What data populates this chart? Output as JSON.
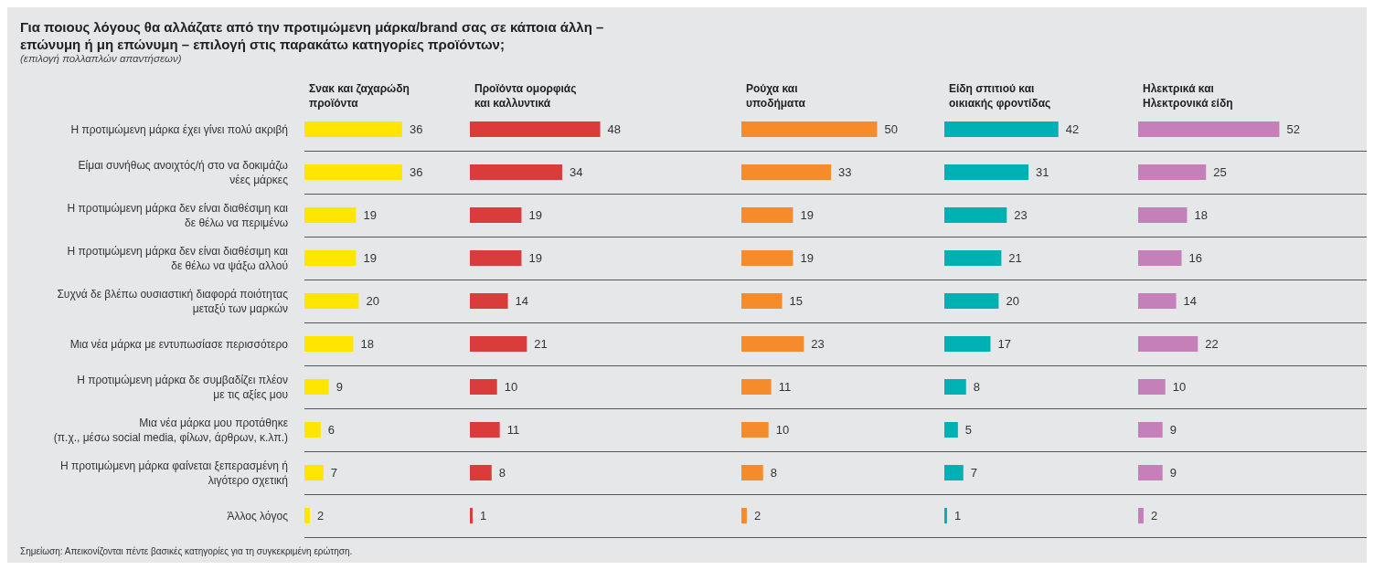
{
  "chart_data": [
    {
      "type": "other",
      "title": "Για ποιους λόγους θα αλλάζατε από την προτιμώμενη μάρκα/brand σας σε κάποια άλλη –\nεπώνυμη ή μη επώνυμη – επιλογή στις παρακάτω κατηγορίες προϊόντων;",
      "subtitle": "(επιλογή πολλαπλών απαντήσεων)",
      "annotations": [
        "Σημείωση: Απεικονίζονται πέντε βασικές κατηγορίες για τη συγκεκριμένη ερώτηση."
      ]
    },
    {
      "type": "bar",
      "orientation": "horizontal",
      "title": "Σνακ και ζαχαρώδη\nπροϊόντα",
      "categories": [
        "Η προτιμώμενη μάρκα έχει γίνει πολύ ακριβή",
        "Είμαι συνήθως ανοιχτός/ή στο να δοκιμάζω\nνέες μάρκες",
        "Η προτιμώμενη μάρκα δεν είναι διαθέσιμη και\nδε θέλω να περιμένω",
        "Η προτιμώμενη μάρκα δεν είναι διαθέσιμη και\nδε θέλω να ψάξω αλλού",
        "Συχνά δε βλέπω ουσιαστική διαφορά ποιότητας\nμεταξύ των μαρκών",
        "Μια νέα μάρκα με εντυπωσίασε περισσότερο",
        "Η προτιμώμενη μάρκα δε συμβαδίζει πλέον\nμε τις αξίες μου",
        "Μια νέα μάρκα μου προτάθηκε\n(π.χ., μέσω social media, φίλων, άρθρων, κ.λπ.)",
        "Η προτιμώμενη μάρκα φαίνεται ξεπερασμένη ή\nλιγότερο σχετική",
        "Άλλος λόγος"
      ],
      "values": [
        36,
        36,
        19,
        19,
        20,
        18,
        9,
        6,
        7,
        2
      ],
      "color": "#ffe600",
      "data_labels": true,
      "tick_labels": "y",
      "grid": "y"
    },
    {
      "type": "bar",
      "orientation": "horizontal",
      "title": "Προϊόντα ομορφιάς\nκαι καλλυντικά",
      "categories": [
        null,
        null,
        null,
        null,
        null,
        null,
        null,
        null,
        null,
        null
      ],
      "values": [
        48,
        34,
        19,
        19,
        14,
        21,
        10,
        11,
        8,
        1
      ],
      "color": "#da3b3b",
      "data_labels": true,
      "tick_labels": false,
      "grid": "y"
    },
    {
      "type": "bar",
      "orientation": "horizontal",
      "title": "Ρούχα και\nυποδήματα",
      "categories": [
        null,
        null,
        null,
        null,
        null,
        null,
        null,
        null,
        null,
        null
      ],
      "values": [
        50,
        33,
        19,
        19,
        15,
        23,
        11,
        10,
        8,
        2
      ],
      "color": "#f68b2c",
      "data_labels": true,
      "tick_labels": false,
      "grid": "y"
    },
    {
      "type": "bar",
      "orientation": "horizontal",
      "title": "Είδη σπιτιού και\nοικιακής φροντίδας",
      "categories": [
        null,
        null,
        null,
        null,
        null,
        null,
        null,
        null,
        null,
        null
      ],
      "values": [
        42,
        31,
        23,
        21,
        20,
        17,
        8,
        5,
        7,
        1
      ],
      "color": "#00b1b4",
      "data_labels": true,
      "tick_labels": false,
      "grid": "y"
    },
    {
      "type": "bar",
      "orientation": "horizontal",
      "title": "Ηλεκτρικά και\nΗλεκτρονικά είδη",
      "categories": [
        null,
        null,
        null,
        null,
        null,
        null,
        null,
        null,
        null,
        null
      ],
      "values": [
        52,
        25,
        18,
        16,
        14,
        22,
        10,
        9,
        9,
        2
      ],
      "color": "#c57fb9",
      "data_labels": true,
      "tick_labels": false,
      "grid": "y"
    }
  ]
}
